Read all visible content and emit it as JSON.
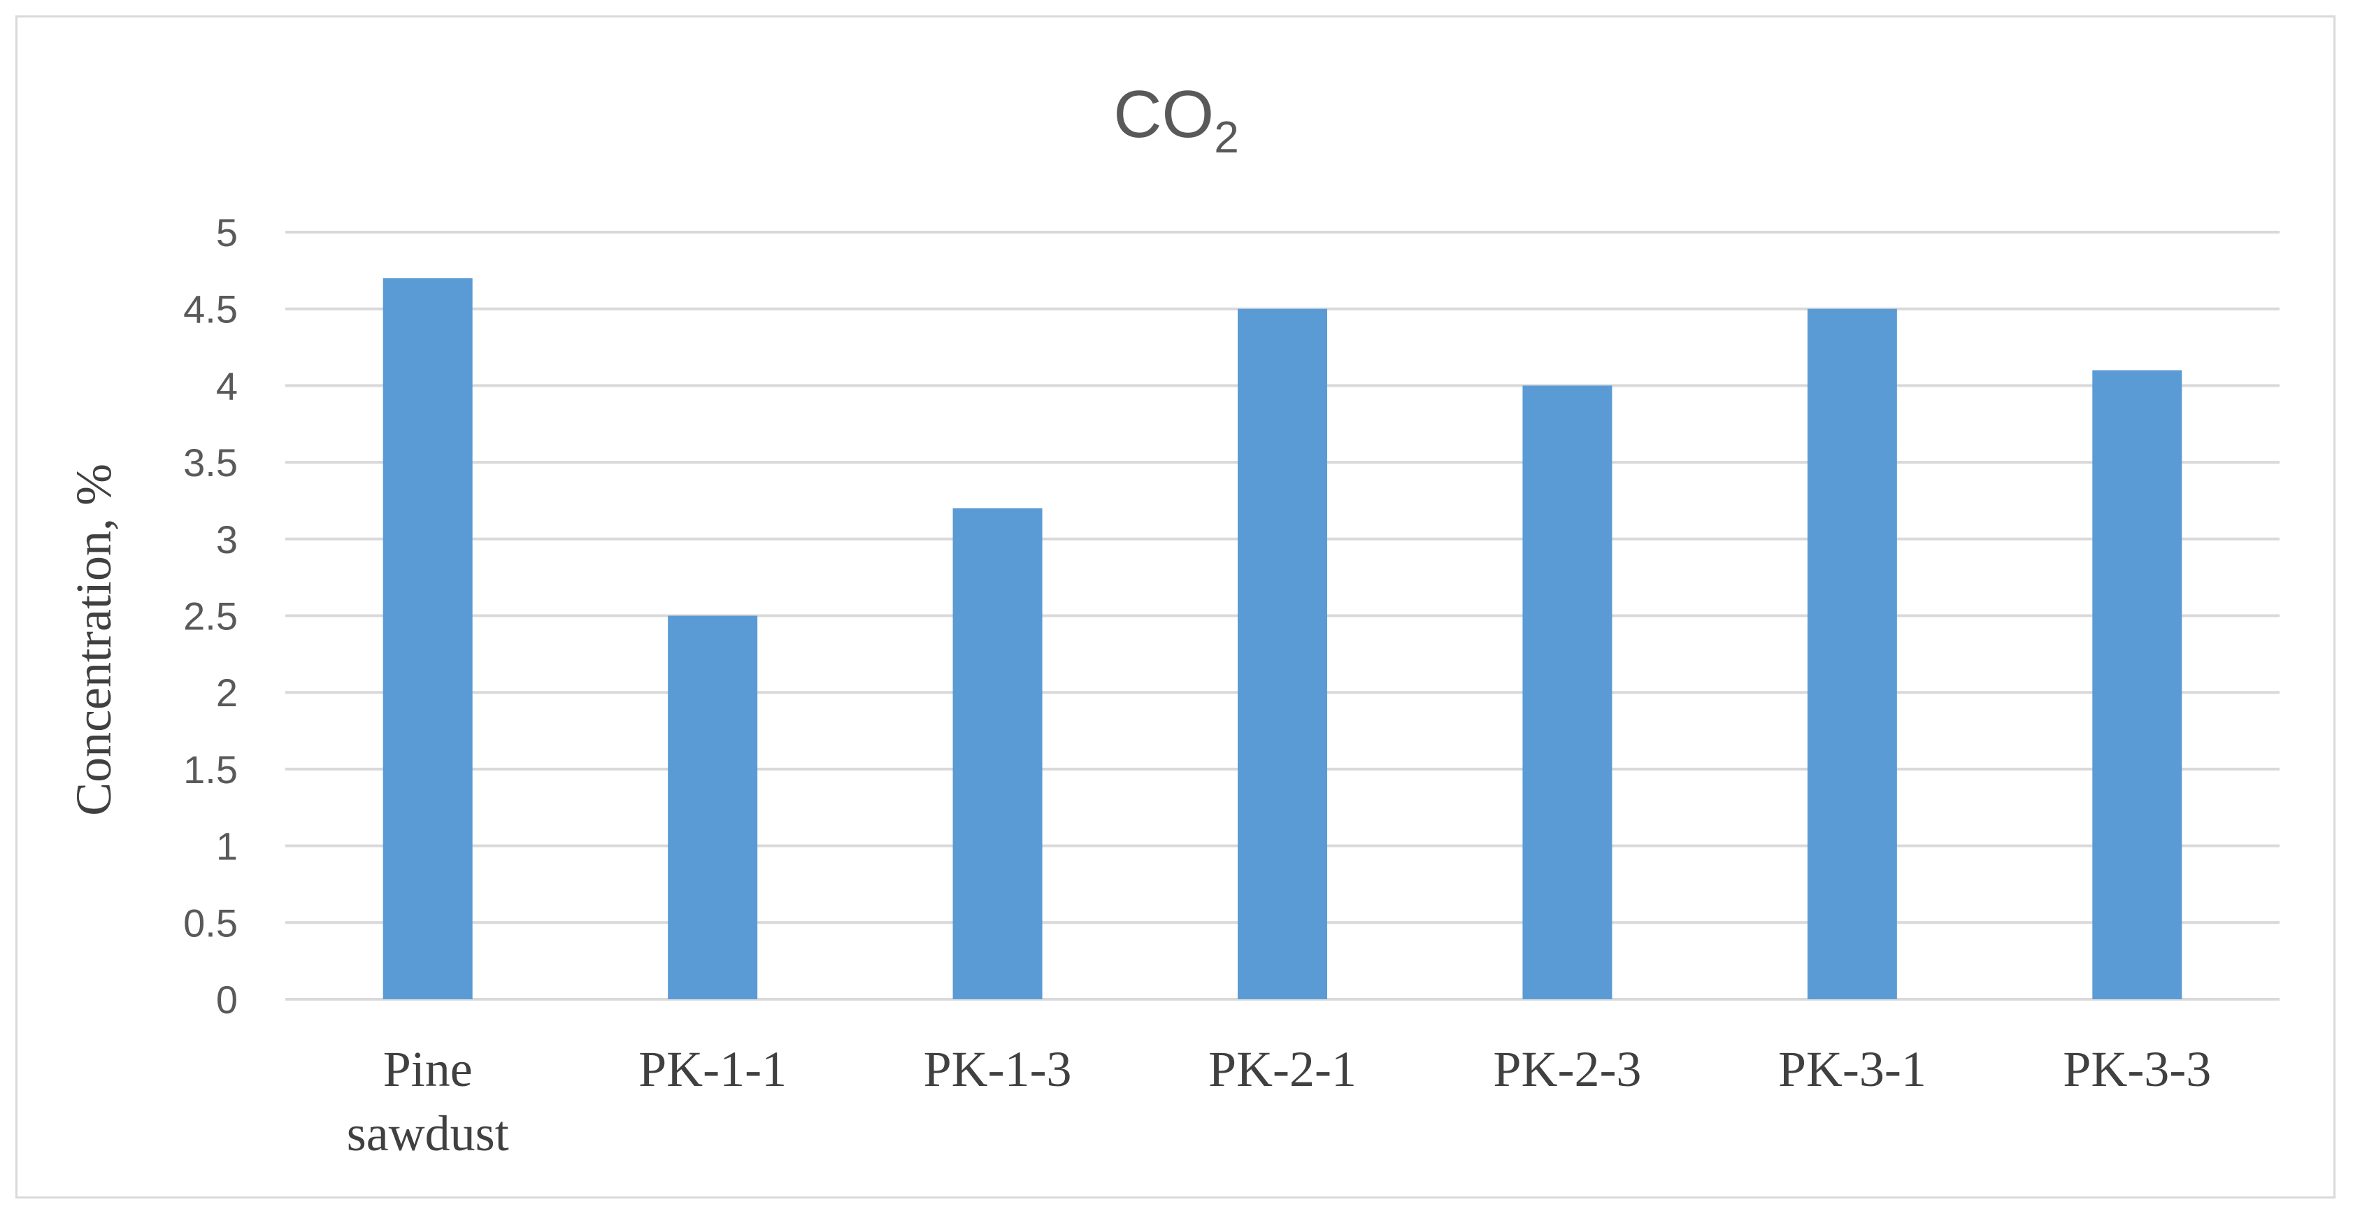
{
  "chart_data": {
    "type": "bar",
    "title": "CO",
    "title_subscript": "2",
    "xlabel": "",
    "ylabel": "Concentration, %",
    "categories": [
      "Pine\nsawdust",
      "PK-1-1",
      "PK-1-3",
      "PK-2-1",
      "PK-2-3",
      "PK-3-1",
      "PK-3-3"
    ],
    "values": [
      4.7,
      2.5,
      3.2,
      4.5,
      4.0,
      4.5,
      4.1
    ],
    "ylim": [
      0,
      5
    ],
    "yticks": [
      "0",
      "0.5",
      "1",
      "1.5",
      "2",
      "2.5",
      "3",
      "3.5",
      "4",
      "4.5",
      "5"
    ],
    "grid": true,
    "bar_color": "#5b9bd5",
    "grid_color": "#d9d9d9"
  }
}
